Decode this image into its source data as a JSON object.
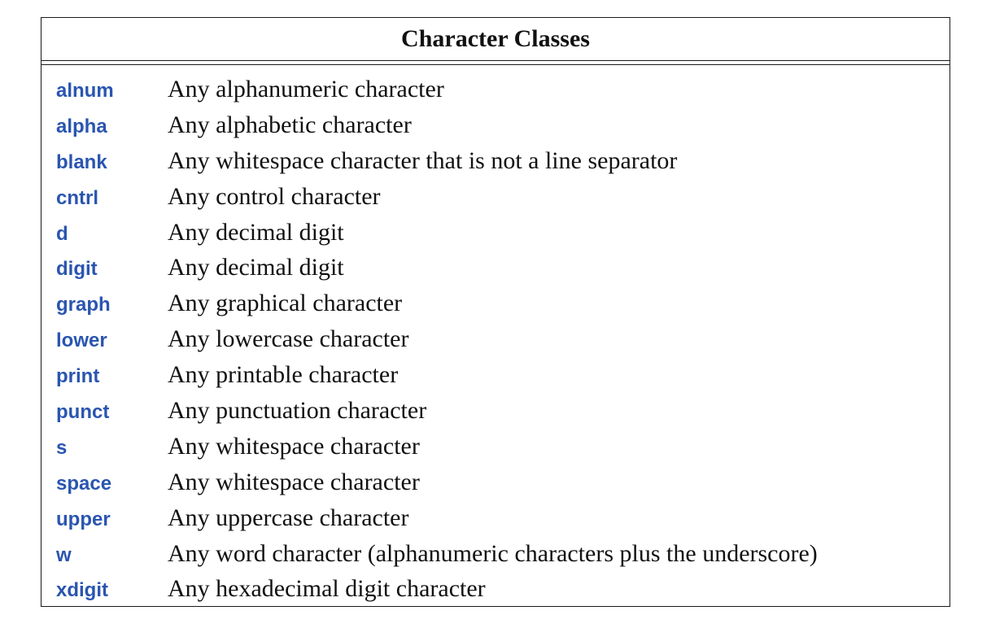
{
  "table": {
    "title": "Character Classes",
    "rows": [
      {
        "name": "alnum",
        "description": "Any alphanumeric character"
      },
      {
        "name": "alpha",
        "description": "Any alphabetic character"
      },
      {
        "name": "blank",
        "description": "Any whitespace character that is not a line separator"
      },
      {
        "name": "cntrl",
        "description": "Any control character"
      },
      {
        "name": "d",
        "description": "Any decimal digit"
      },
      {
        "name": "digit",
        "description": "Any decimal digit"
      },
      {
        "name": "graph",
        "description": "Any graphical character"
      },
      {
        "name": "lower",
        "description": "Any lowercase character"
      },
      {
        "name": "print",
        "description": "Any printable character"
      },
      {
        "name": "punct",
        "description": "Any punctuation character"
      },
      {
        "name": "s",
        "description": "Any whitespace character"
      },
      {
        "name": "space",
        "description": "Any whitespace character"
      },
      {
        "name": "upper",
        "description": "Any uppercase character"
      },
      {
        "name": "w",
        "description": "Any word character (alphanumeric characters plus the underscore)"
      },
      {
        "name": "xdigit",
        "description": "Any hexadecimal digit character"
      }
    ]
  },
  "colors": {
    "class_name": "#2a55b0",
    "text": "#111111",
    "border": "#1a1a1a"
  }
}
